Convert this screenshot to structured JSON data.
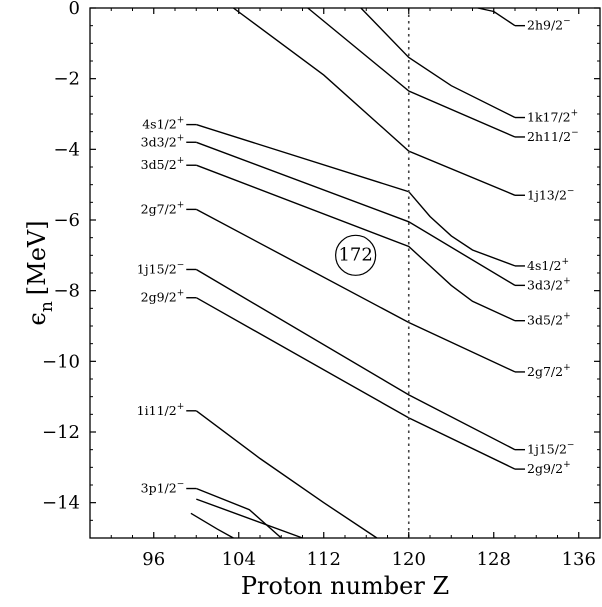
{
  "chart_data": {
    "type": "line",
    "title": "",
    "xlabel": "Proton number Z",
    "ylabel_main": "ϵ",
    "ylabel_sub": "n",
    "ylabel_units": "[MeV]",
    "xlim": [
      90,
      138
    ],
    "ylim": [
      -15,
      0
    ],
    "xticks": [
      96,
      104,
      112,
      120,
      128,
      136
    ],
    "yticks": [
      0,
      -2,
      -4,
      -6,
      -8,
      -10,
      -12,
      -14
    ],
    "vertical_marker": {
      "x": 120,
      "style": "dotted"
    },
    "annotation": {
      "text": "172",
      "x": 115,
      "y": -7.0,
      "shape": "circle"
    },
    "left_labels": [
      {
        "main": "4s1/2",
        "sup": "+",
        "x": 100,
        "y": -3.3
      },
      {
        "main": "3d3/2",
        "sup": "+",
        "x": 100,
        "y": -3.8
      },
      {
        "main": "3d5/2",
        "sup": "+",
        "x": 100,
        "y": -4.45
      },
      {
        "main": "2g7/2",
        "sup": "+",
        "x": 100,
        "y": -5.7
      },
      {
        "main": "1j15/2",
        "sup": "−",
        "x": 100,
        "y": -7.4
      },
      {
        "main": "2g9/2",
        "sup": "+",
        "x": 100,
        "y": -8.2
      },
      {
        "main": "1i11/2",
        "sup": "+",
        "x": 100,
        "y": -11.4
      },
      {
        "main": "3p1/2",
        "sup": "−",
        "x": 100,
        "y": -13.6
      }
    ],
    "right_labels": [
      {
        "main": "2h9/2",
        "sup": "−",
        "x": 130,
        "y": -0.5
      },
      {
        "main": "1k17/2",
        "sup": "+",
        "x": 130,
        "y": -3.1
      },
      {
        "main": "2h11/2",
        "sup": "−",
        "x": 130,
        "y": -3.65
      },
      {
        "main": "1j13/2",
        "sup": "−",
        "x": 130,
        "y": -5.3
      },
      {
        "main": "4s1/2",
        "sup": "+",
        "x": 130,
        "y": -7.3
      },
      {
        "main": "3d3/2",
        "sup": "+",
        "x": 130,
        "y": -7.85
      },
      {
        "main": "3d5/2",
        "sup": "+",
        "x": 130,
        "y": -8.85
      },
      {
        "main": "2g7/2",
        "sup": "+",
        "x": 130,
        "y": -10.3
      },
      {
        "main": "1j15/2",
        "sup": "−",
        "x": 130,
        "y": -12.5
      },
      {
        "main": "2g9/2",
        "sup": "+",
        "x": 130,
        "y": -13.05
      }
    ],
    "series": [
      {
        "points": [
          [
            100,
            -3.3
          ],
          [
            120,
            -5.2
          ],
          [
            122,
            -5.9
          ],
          [
            124,
            -6.45
          ],
          [
            126,
            -6.85
          ],
          [
            130,
            -7.3
          ]
        ]
      },
      {
        "points": [
          [
            100,
            -3.8
          ],
          [
            120,
            -6.05
          ],
          [
            130,
            -7.85
          ]
        ]
      },
      {
        "points": [
          [
            100,
            -4.45
          ],
          [
            120,
            -6.75
          ],
          [
            122,
            -7.3
          ],
          [
            124,
            -7.85
          ],
          [
            126,
            -8.3
          ],
          [
            130,
            -8.85
          ]
        ]
      },
      {
        "points": [
          [
            100,
            -5.7
          ],
          [
            120,
            -8.9
          ],
          [
            130,
            -10.3
          ]
        ]
      },
      {
        "points": [
          [
            100,
            -7.4
          ],
          [
            120,
            -10.95
          ],
          [
            130,
            -12.5
          ]
        ]
      },
      {
        "points": [
          [
            100,
            -8.2
          ],
          [
            120,
            -11.6
          ],
          [
            130,
            -13.05
          ]
        ]
      },
      {
        "points": [
          [
            100,
            -11.4
          ],
          [
            106,
            -12.75
          ],
          [
            112,
            -14.0
          ],
          [
            117,
            -15.0
          ]
        ]
      },
      {
        "points": [
          [
            100,
            -13.6
          ],
          [
            105,
            -14.2
          ],
          [
            108,
            -15.0
          ]
        ]
      },
      {
        "points": [
          [
            99.5,
            -14.3
          ],
          [
            102,
            -14.75
          ],
          [
            103.5,
            -15.0
          ]
        ]
      },
      {
        "points": [
          [
            100,
            -13.9
          ],
          [
            110,
            -15.0
          ]
        ]
      },
      {
        "points": [
          [
            103.5,
            0.0
          ],
          [
            112,
            -1.9
          ],
          [
            120,
            -4.05
          ],
          [
            130,
            -5.3
          ]
        ]
      },
      {
        "points": [
          [
            110.5,
            0.0
          ],
          [
            120,
            -2.35
          ],
          [
            130,
            -3.65
          ]
        ]
      },
      {
        "points": [
          [
            115.5,
            0.0
          ],
          [
            120,
            -1.4
          ],
          [
            124,
            -2.2
          ],
          [
            130,
            -3.1
          ]
        ]
      },
      {
        "points": [
          [
            126.5,
            0.0
          ],
          [
            128,
            -0.1
          ],
          [
            130,
            -0.5
          ]
        ]
      }
    ]
  }
}
